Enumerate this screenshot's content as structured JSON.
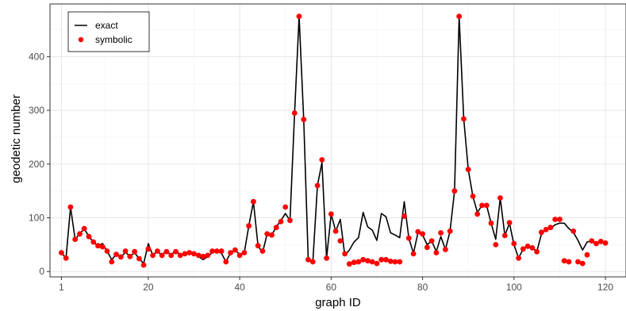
{
  "chart_data": {
    "type": "line",
    "xlabel": "graph ID",
    "ylabel": "geodetic number",
    "xlim": [
      -1.5,
      124.5
    ],
    "ylim": [
      -10,
      498
    ],
    "x_ticks": [
      1,
      20,
      40,
      60,
      80,
      100,
      120
    ],
    "y_ticks": [
      0,
      100,
      200,
      300,
      400
    ],
    "grid": true,
    "legend_position": "top-left",
    "series": [
      {
        "name": "exact",
        "style": "line",
        "color": "#000000",
        "x": [
          1,
          2,
          3,
          4,
          5,
          6,
          7,
          8,
          9,
          10,
          11,
          12,
          13,
          14,
          15,
          16,
          17,
          18,
          19,
          20,
          21,
          22,
          23,
          24,
          25,
          26,
          27,
          28,
          29,
          30,
          31,
          32,
          33,
          34,
          35,
          36,
          37,
          38,
          39,
          40,
          41,
          42,
          43,
          44,
          45,
          46,
          47,
          48,
          49,
          50,
          51,
          52,
          53,
          54,
          55,
          56,
          57,
          58,
          59,
          60,
          61,
          62,
          63,
          64,
          65,
          66,
          67,
          68,
          69,
          70,
          71,
          72,
          73,
          74,
          75,
          76,
          77,
          78,
          79,
          80,
          81,
          82,
          83,
          84,
          85,
          86,
          87,
          88,
          89,
          90,
          91,
          92,
          93,
          94,
          95,
          96,
          97,
          98,
          99,
          100,
          101,
          102,
          103,
          104,
          105,
          106,
          107,
          108,
          109,
          110,
          111,
          112,
          113,
          114,
          115,
          116,
          117,
          118,
          119,
          120
        ],
        "y": [
          35,
          25,
          120,
          60,
          70,
          80,
          65,
          55,
          48,
          52,
          38,
          22,
          32,
          27,
          36,
          28,
          35,
          24,
          15,
          52,
          30,
          38,
          30,
          39,
          30,
          40,
          30,
          33,
          35,
          33,
          28,
          22,
          28,
          35,
          38,
          34,
          18,
          35,
          40,
          32,
          35,
          85,
          130,
          48,
          35,
          70,
          68,
          83,
          95,
          108,
          95,
          295,
          475,
          283,
          22,
          18,
          160,
          203,
          25,
          107,
          75,
          97,
          30,
          40,
          55,
          63,
          110,
          83,
          77,
          58,
          108,
          102,
          72,
          68,
          63,
          130,
          62,
          34,
          72,
          68,
          50,
          57,
          37,
          65,
          41,
          75,
          150,
          475,
          284,
          190,
          140,
          110,
          123,
          123,
          90,
          60,
          137,
          67,
          90,
          50,
          25,
          42,
          47,
          45,
          37,
          70,
          78,
          80,
          87,
          90,
          90,
          80,
          73,
          58,
          40,
          55,
          57,
          50,
          55,
          52
        ]
      },
      {
        "name": "symbolic",
        "style": "points",
        "color": "#ff0000",
        "x": [
          1,
          2,
          3,
          4,
          5,
          6,
          7,
          8,
          9,
          10,
          11,
          12,
          13,
          14,
          15,
          16,
          17,
          18,
          19,
          20,
          21,
          22,
          23,
          24,
          25,
          26,
          27,
          28,
          29,
          30,
          31,
          32,
          33,
          34,
          35,
          36,
          37,
          38,
          39,
          40,
          41,
          42,
          43,
          44,
          45,
          46,
          47,
          48,
          49,
          50,
          51,
          52,
          53,
          54,
          55,
          56,
          57,
          58,
          59,
          60,
          61,
          62,
          63,
          64,
          65,
          66,
          67,
          68,
          69,
          70,
          71,
          72,
          73,
          74,
          75,
          76,
          77,
          78,
          79,
          80,
          81,
          82,
          83,
          84,
          85,
          86,
          87,
          88,
          89,
          90,
          91,
          92,
          93,
          94,
          95,
          96,
          97,
          98,
          99,
          100,
          101,
          102,
          103,
          104,
          105,
          106,
          107,
          108,
          109,
          110,
          111,
          112,
          113,
          114,
          115,
          116,
          117,
          118,
          119,
          120
        ],
        "y": [
          35,
          25,
          120,
          60,
          70,
          80,
          65,
          55,
          48,
          46,
          38,
          18,
          32,
          27,
          38,
          28,
          37,
          24,
          12,
          42,
          30,
          38,
          30,
          37,
          30,
          37,
          30,
          33,
          35,
          33,
          30,
          28,
          30,
          38,
          38,
          38,
          18,
          35,
          40,
          30,
          35,
          85,
          130,
          48,
          38,
          70,
          68,
          82,
          93,
          120,
          95,
          295,
          475,
          283,
          22,
          18,
          160,
          208,
          25,
          107,
          75,
          57,
          33,
          14,
          17,
          18,
          22,
          20,
          18,
          15,
          22,
          22,
          19,
          18,
          18,
          103,
          62,
          33,
          74,
          70,
          45,
          57,
          35,
          72,
          41,
          75,
          150,
          475,
          284,
          190,
          140,
          107,
          123,
          123,
          90,
          50,
          137,
          67,
          91,
          52,
          25,
          42,
          47,
          44,
          37,
          73,
          78,
          82,
          97,
          97,
          20,
          18,
          75,
          18,
          15,
          31,
          57,
          52,
          56,
          53
        ]
      }
    ]
  }
}
